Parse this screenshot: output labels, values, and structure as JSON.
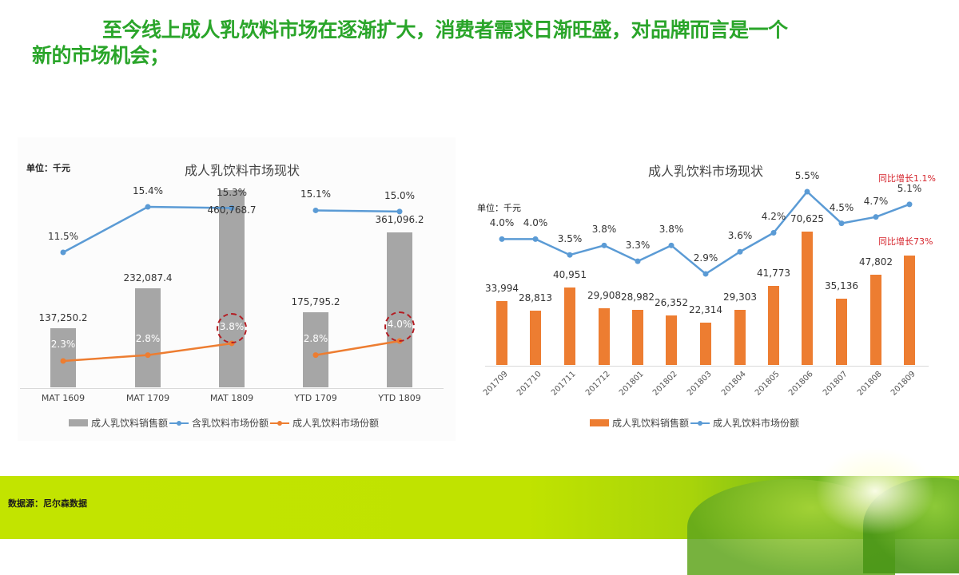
{
  "headline": {
    "line1": "至今线上成人乳饮料市场在逐渐扩大，消费者需求日渐旺盛，对品牌而言是一个",
    "line2": "新的市场机会；"
  },
  "footer": {
    "source": "数据源：尼尔森数据"
  },
  "colors": {
    "headline_green": "#2aa52a",
    "gray_bar": "#a6a6a6",
    "orange": "#ed7d31",
    "blue": "#5b9bd5",
    "red_annotation": "#d6262e",
    "footer_lime": "#c2e400"
  },
  "left_chart": {
    "unit": "单位：千元",
    "title": "成人乳饮料市场现状",
    "legend": [
      "成人乳饮料销售额",
      "含乳饮料市场份额",
      "成人乳饮料市场份额"
    ]
  },
  "right_chart": {
    "unit": "单位：千元",
    "title": "成人乳饮料市场现状",
    "legend": [
      "成人乳饮料销售额",
      "成人乳饮料市场份额"
    ],
    "annotations": [
      "同比增长1.1%",
      "同比增长73%"
    ]
  },
  "chart_data": [
    {
      "type": "bar",
      "title": "成人乳饮料市场现状",
      "unit_note": "单位：千元",
      "categories": [
        "MAT 1609",
        "MAT 1709",
        "MAT 1809",
        "YTD 1709",
        "YTD 1809"
      ],
      "series": [
        {
          "name": "成人乳饮料销售额",
          "type": "bar",
          "values": [
            137250.2,
            232087.4,
            460768.7,
            175795.2,
            361096.2
          ],
          "labels": [
            "137,250.2",
            "232,087.4",
            "460,768.7",
            "175,795.2",
            "361,096.2"
          ]
        },
        {
          "name": "含乳饮料市场份额",
          "type": "line",
          "values": [
            11.5,
            15.4,
            15.3,
            15.1,
            15.0
          ],
          "labels": [
            "11.5%",
            "15.4%",
            "15.3%",
            "15.1%",
            "15.0%"
          ]
        },
        {
          "name": "成人乳饮料市场份额",
          "type": "line",
          "values": [
            2.3,
            2.8,
            3.8,
            2.8,
            4.0
          ],
          "labels": [
            "2.3%",
            "2.8%",
            "3.8%",
            "2.8%",
            "4.0%"
          ]
        }
      ],
      "highlights": [
        "MAT 1809 3.8%",
        "YTD 1809 4.0%"
      ],
      "legend_position": "bottom",
      "grid": false
    },
    {
      "type": "bar",
      "title": "成人乳饮料市场现状",
      "unit_note": "单位：千元",
      "categories": [
        "201709",
        "201710",
        "201711",
        "201712",
        "201801",
        "201802",
        "201803",
        "201804",
        "201805",
        "201806",
        "201807",
        "201808",
        "201809"
      ],
      "series": [
        {
          "name": "成人乳饮料销售额",
          "type": "bar",
          "values": [
            33994,
            28813,
            40951,
            29908,
            28982,
            26352,
            22314,
            29303,
            41773,
            70625,
            35136,
            47802,
            58000
          ],
          "labels": [
            "33,994",
            "28,813",
            "40,951",
            "29,908",
            "28,982",
            "26,352",
            "22,314",
            "29,303",
            "41,773",
            "70,625",
            "35,136",
            "47,802",
            ""
          ]
        },
        {
          "name": "成人乳饮料市场份额",
          "type": "line",
          "values": [
            4.0,
            4.0,
            3.5,
            3.8,
            3.3,
            3.8,
            2.9,
            3.6,
            4.2,
            5.5,
            4.5,
            4.7,
            5.1
          ],
          "labels": [
            "4.0%",
            "4.0%",
            "3.5%",
            "3.8%",
            "3.3%",
            "3.8%",
            "2.9%",
            "3.6%",
            "4.2%",
            "5.5%",
            "4.5%",
            "4.7%",
            "5.1%"
          ]
        }
      ],
      "annotations": [
        {
          "text": "同比增长1.1%",
          "target": "201809 share"
        },
        {
          "text": "同比增长73%",
          "target": "201809 sales"
        }
      ],
      "legend_position": "bottom",
      "grid": false
    }
  ]
}
